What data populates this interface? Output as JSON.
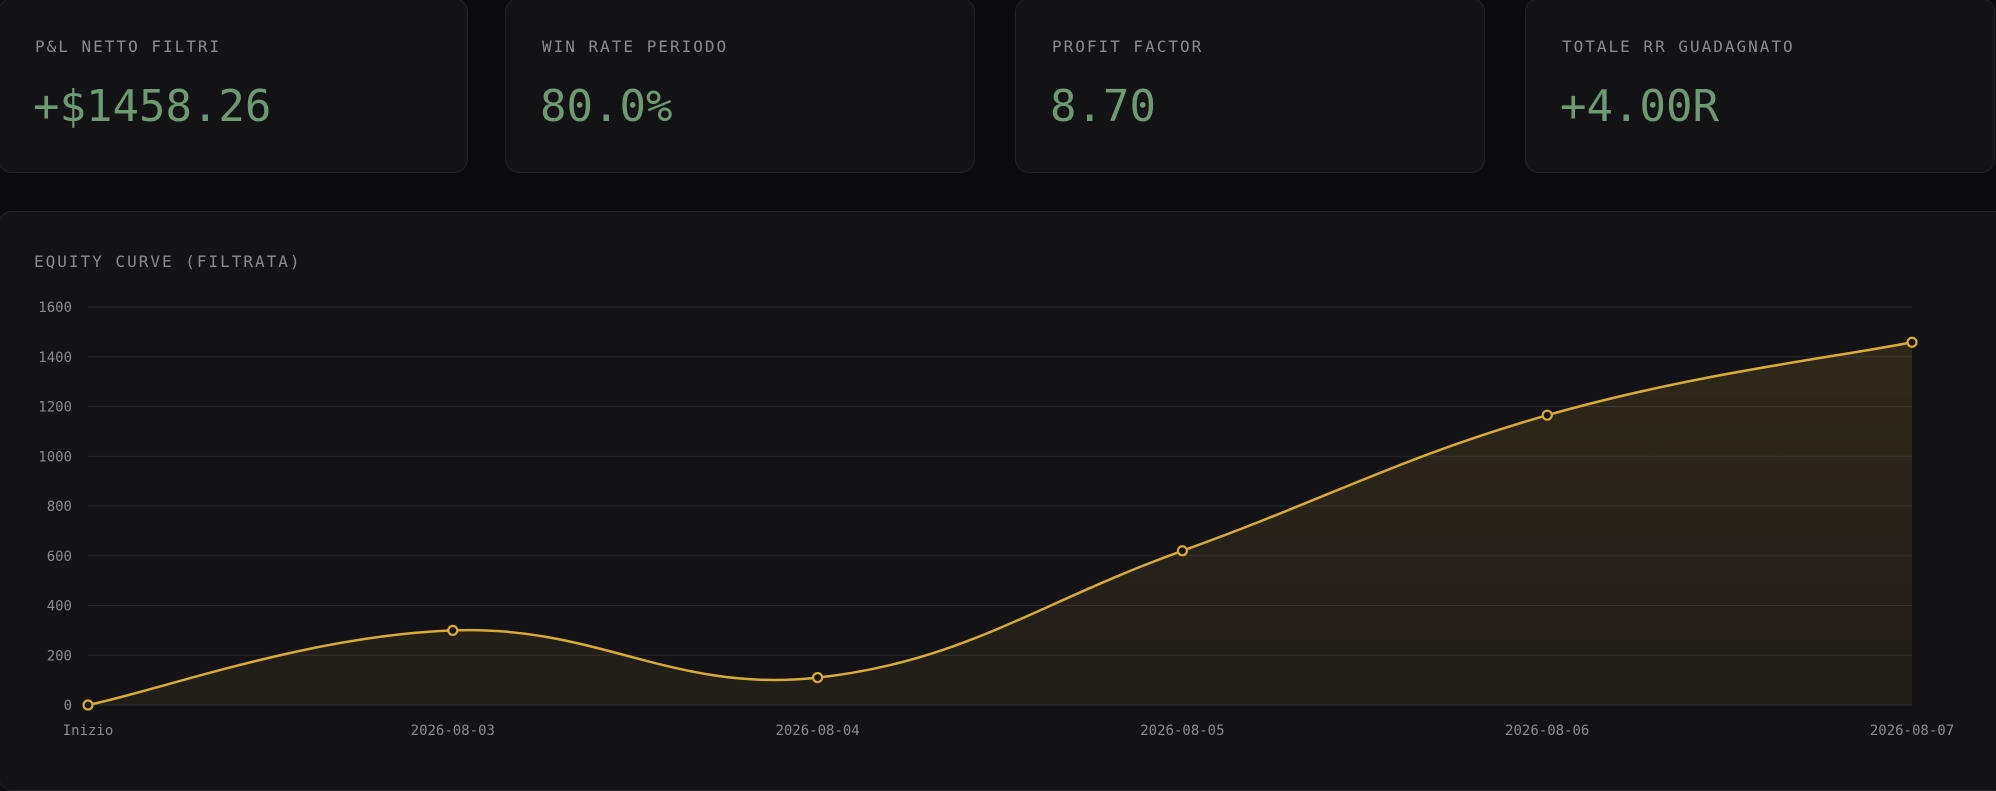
{
  "stats": [
    {
      "label": "P&L NETTO FILTRI",
      "value": "+$1458.26"
    },
    {
      "label": "WIN RATE PERIODO",
      "value": "80.0%"
    },
    {
      "label": "PROFIT FACTOR",
      "value": "8.70"
    },
    {
      "label": "TOTALE RR GUADAGNATO",
      "value": "+4.00R"
    }
  ],
  "colors": {
    "accent": "#d9aa35",
    "positive": "#6d9a72",
    "card_bg": "#131316",
    "page_bg": "#0b0b0d"
  },
  "chart_data": {
    "type": "area",
    "title": "EQUITY CURVE (FILTRATA)",
    "categories": [
      "Inizio",
      "2026-08-03",
      "2026-08-04",
      "2026-08-05",
      "2026-08-06",
      "2026-08-07"
    ],
    "values": [
      0,
      300,
      110,
      620,
      1165,
      1458.26
    ],
    "yticks": [
      0,
      200,
      400,
      600,
      800,
      1000,
      1200,
      1400,
      1600
    ],
    "ylim": [
      0,
      1600
    ],
    "xlabel": "",
    "ylabel": "",
    "grid": true,
    "legend": "none"
  }
}
